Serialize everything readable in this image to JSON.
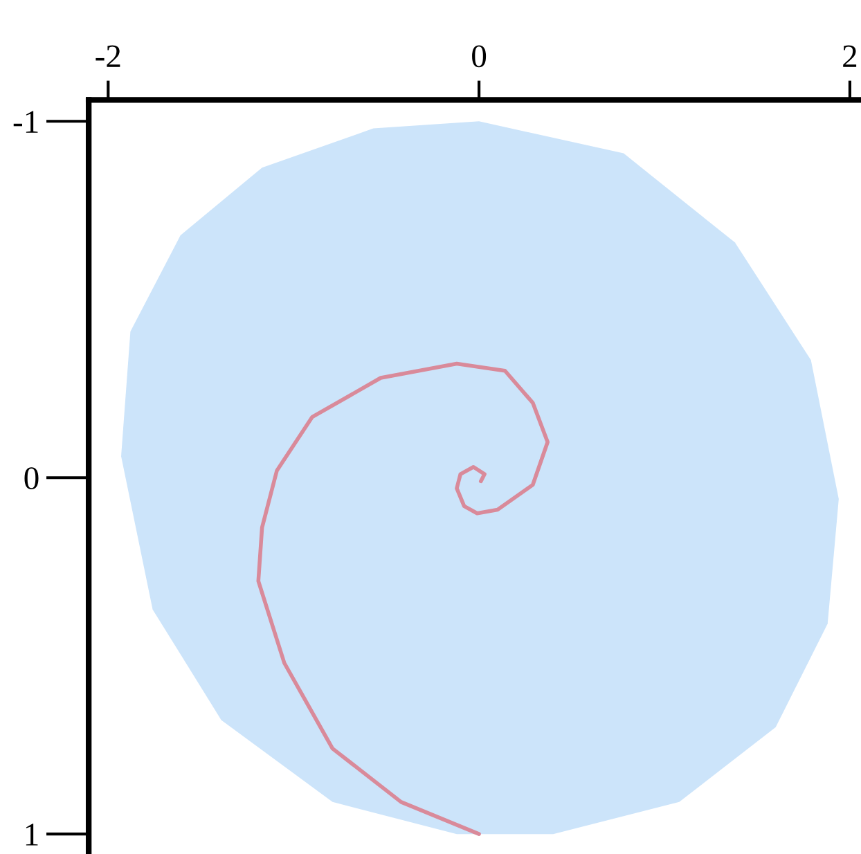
{
  "chart_data": {
    "type": "line",
    "xlim": [
      -2.105,
      2.06
    ],
    "ylim": [
      1.056,
      -1.06
    ],
    "xticks": [
      {
        "value": -2,
        "label": "-2"
      },
      0,
      2
    ],
    "yticks": [
      {
        "value": -1,
        "label": "-1"
      },
      0,
      1
    ],
    "grid": false,
    "legend": false,
    "marker": "none",
    "line_style": "solid",
    "series": [
      {
        "type": "area",
        "color": "#cce4fa",
        "x": [
          0,
          0.78,
          1.38,
          1.79,
          1.94,
          1.88,
          1.6,
          1.08,
          0.4,
          -0.12,
          -0.79,
          -1.39,
          -1.76,
          -1.93,
          -1.88,
          -1.61,
          -1.17,
          -0.57
        ],
        "values": [
          -1.0,
          -0.91,
          -0.66,
          -0.33,
          0.06,
          0.41,
          0.7,
          0.91,
          1.0,
          1.0,
          0.91,
          0.68,
          0.37,
          -0.06,
          -0.41,
          -0.68,
          -0.87,
          -0.98
        ]
      },
      {
        "color": "#d98a9a",
        "x": [
          0,
          -0.42,
          -0.79,
          -1.05,
          -1.19,
          -1.17,
          -1.09,
          -0.9,
          -0.53,
          -0.12,
          0.14,
          0.29,
          0.37,
          0.29,
          0.1,
          -0.01,
          -0.08,
          -0.12,
          -0.1,
          -0.03,
          0.03,
          0.01
        ],
        "values": [
          1.0,
          0.91,
          0.76,
          0.52,
          0.29,
          0.14,
          -0.02,
          -0.17,
          -0.28,
          -0.32,
          -0.3,
          -0.21,
          -0.1,
          0.02,
          0.09,
          0.1,
          0.08,
          0.03,
          -0.01,
          -0.03,
          -0.01,
          0.01
        ]
      }
    ]
  }
}
